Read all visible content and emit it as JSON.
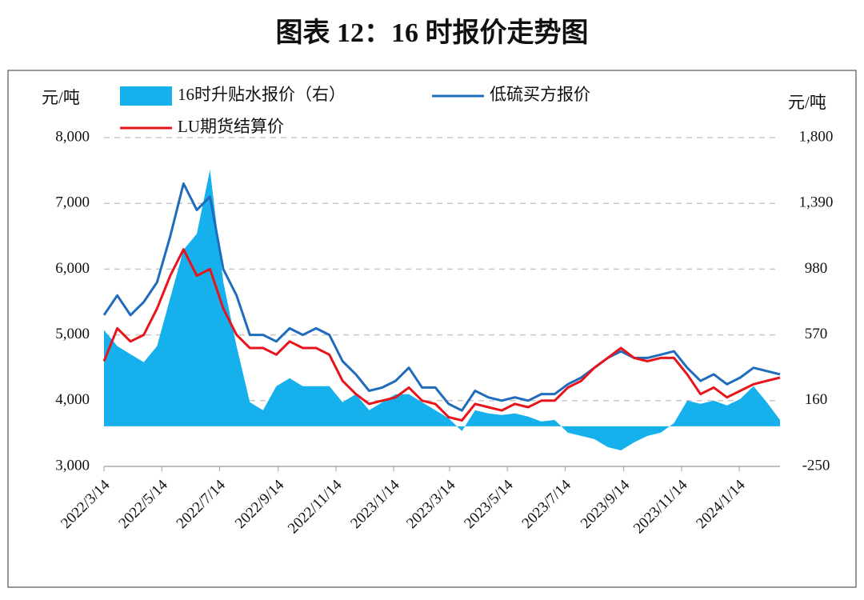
{
  "chart_data": {
    "type": "line",
    "title": "图表 12：16 时报价走势图",
    "y_label": "元/吨",
    "y2_label": "元/吨",
    "x": [
      "2022/3/14",
      "2022/3/28",
      "2022/4/11",
      "2022/4/25",
      "2022/5/9",
      "2022/5/23",
      "2022/6/6",
      "2022/6/20",
      "2022/7/4",
      "2022/7/18",
      "2022/8/1",
      "2022/8/15",
      "2022/8/29",
      "2022/9/12",
      "2022/9/26",
      "2022/10/10",
      "2022/10/24",
      "2022/11/7",
      "2022/11/21",
      "2022/12/5",
      "2022/12/19",
      "2023/1/2",
      "2023/1/16",
      "2023/1/30",
      "2023/2/13",
      "2023/2/27",
      "2023/3/13",
      "2023/3/27",
      "2023/4/10",
      "2023/4/24",
      "2023/5/8",
      "2023/5/22",
      "2023/6/5",
      "2023/6/19",
      "2023/7/3",
      "2023/7/17",
      "2023/7/31",
      "2023/8/14",
      "2023/8/28",
      "2023/9/11",
      "2023/9/25",
      "2023/10/9",
      "2023/10/23",
      "2023/11/6",
      "2023/11/20",
      "2023/12/4",
      "2023/12/18",
      "2024/1/1",
      "2024/1/15",
      "2024/1/29",
      "2024/2/12",
      "2024/2/26"
    ],
    "series": [
      {
        "name": "16时升贴水报价（右）",
        "type": "area",
        "axis": "y2",
        "color": "#16b0ec",
        "values": [
          600,
          500,
          450,
          400,
          500,
          800,
          1100,
          1200,
          1600,
          900,
          500,
          150,
          100,
          250,
          300,
          250,
          250,
          250,
          150,
          200,
          100,
          150,
          200,
          200,
          150,
          100,
          50,
          -30,
          100,
          80,
          70,
          80,
          60,
          30,
          40,
          -40,
          -60,
          -80,
          -130,
          -150,
          -100,
          -60,
          -40,
          20,
          160,
          140,
          160,
          130,
          170,
          250,
          150,
          40
        ]
      },
      {
        "name": "低硫买方报价",
        "color": "#1f6cbc",
        "values": [
          5300,
          5600,
          5300,
          5500,
          5800,
          6500,
          7300,
          6900,
          7100,
          6000,
          5600,
          5000,
          5000,
          4900,
          5100,
          5000,
          5100,
          5000,
          4600,
          4400,
          4150,
          4200,
          4300,
          4500,
          4200,
          4200,
          3950,
          3850,
          4150,
          4050,
          4000,
          4050,
          4000,
          4100,
          4100,
          4250,
          4350,
          4500,
          4650,
          4750,
          4650,
          4650,
          4700,
          4750,
          4500,
          4300,
          4400,
          4250,
          4350,
          4500,
          4450,
          4400
        ]
      },
      {
        "name": "LU期货结算价",
        "color": "#e8141b",
        "values": [
          4600,
          5100,
          4900,
          5000,
          5400,
          5900,
          6300,
          5900,
          6000,
          5400,
          5000,
          4800,
          4800,
          4700,
          4900,
          4800,
          4800,
          4700,
          4300,
          4100,
          3950,
          4000,
          4050,
          4200,
          4000,
          3950,
          3750,
          3700,
          3950,
          3900,
          3850,
          3950,
          3900,
          4000,
          4000,
          4200,
          4300,
          4500,
          4650,
          4800,
          4650,
          4600,
          4650,
          4650,
          4400,
          4100,
          4200,
          4050,
          4150,
          4250,
          4300,
          4350
        ]
      }
    ],
    "xlim": [
      "2022/3/14",
      "2024/2/26"
    ],
    "xticks": [
      "2022/3/14",
      "2022/5/14",
      "2022/7/14",
      "2022/9/14",
      "2022/11/14",
      "2023/1/14",
      "2023/3/14",
      "2023/5/14",
      "2023/7/14",
      "2023/9/14",
      "2023/11/14",
      "2024/1/14"
    ],
    "ylim": [
      3000,
      8000
    ],
    "yticks": [
      {
        "value": 3000,
        "label": "3,000"
      },
      {
        "value": 4000,
        "label": "4,000"
      },
      {
        "value": 5000,
        "label": "5,000"
      },
      {
        "value": 6000,
        "label": "6,000"
      },
      {
        "value": 7000,
        "label": "7,000"
      },
      {
        "value": 8000,
        "label": "8,000"
      }
    ],
    "y2lim": [
      -250,
      1800
    ],
    "y2ticks": [
      -250,
      160,
      570,
      980,
      {
        "value": 1390,
        "label": "1,390"
      },
      {
        "value": 1800,
        "label": "1,800"
      }
    ],
    "grid": true
  }
}
